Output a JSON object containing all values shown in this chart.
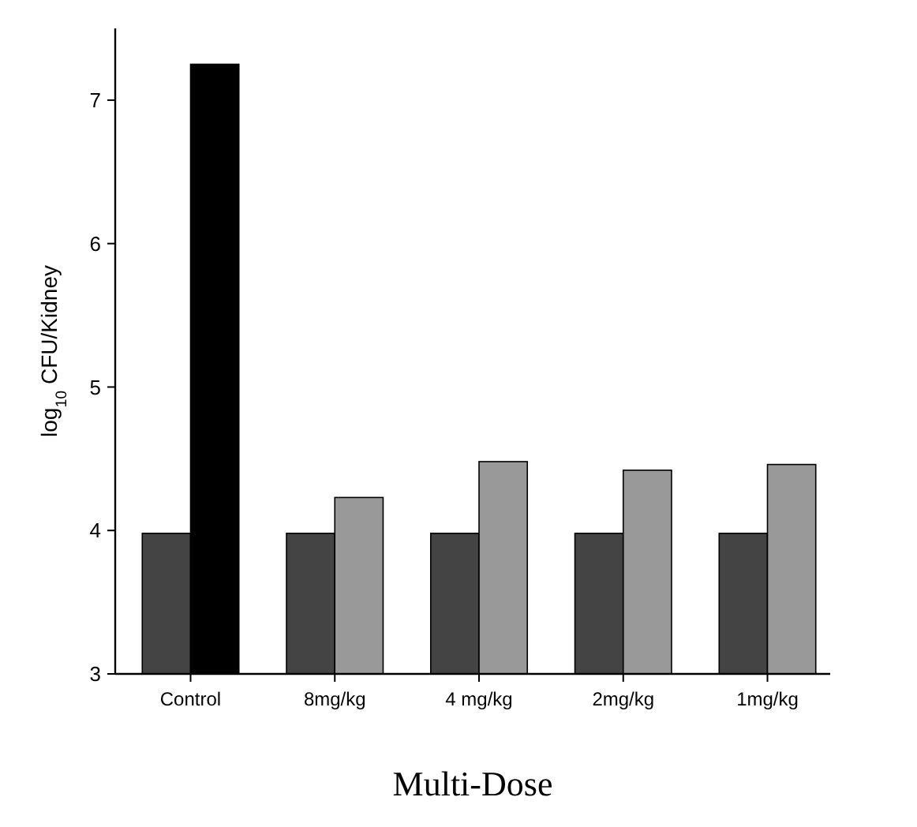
{
  "chart_data": {
    "type": "bar",
    "xlabel": "Multi-Dose",
    "ylabel": "log$_{10}$ CFU/Kidney",
    "categories": [
      "Control",
      "8mg/kg",
      "4 mg/kg",
      "2mg/kg",
      "1mg/kg"
    ],
    "series": [
      {
        "color": "#444444",
        "values": [
          3.98,
          3.98,
          3.98,
          3.98,
          3.98
        ]
      },
      {
        "colors": [
          "#000000",
          "#999999",
          "#999999",
          "#999999",
          "#999999"
        ],
        "values": [
          7.25,
          4.23,
          4.48,
          4.42,
          4.46
        ]
      }
    ],
    "ylim": [
      3,
      7.5
    ],
    "yticks": [
      3,
      4,
      5,
      6,
      7
    ],
    "grid": false
  }
}
